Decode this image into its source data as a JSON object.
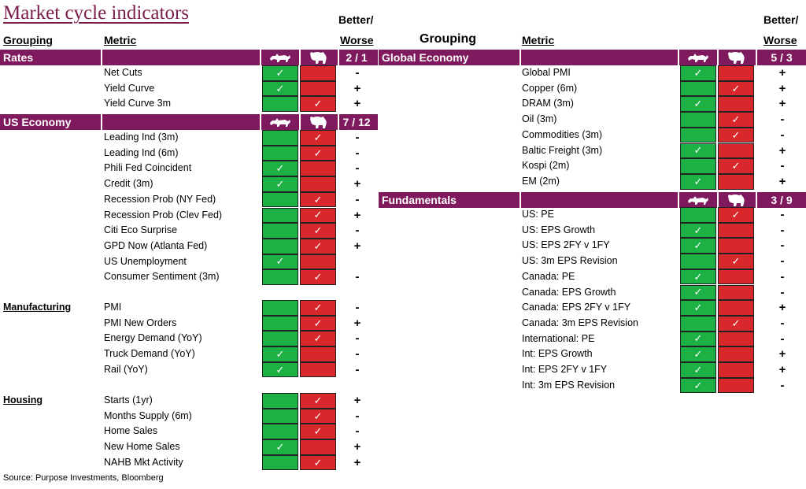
{
  "title": "Market cycle indicators",
  "headers": {
    "grouping": "Grouping",
    "metric": "Metric",
    "better": "Better/",
    "worse": "Worse"
  },
  "icons": {
    "bull": "bull-icon",
    "bear": "bear-icon"
  },
  "colors": {
    "bar": "#7f1a5e",
    "green": "#1db045",
    "red": "#d8282c",
    "title": "#7b1e4b"
  },
  "check": "✓",
  "chart_data": {
    "type": "table",
    "title": "Market cycle indicators",
    "columns": [
      "Grouping",
      "Metric",
      "Bull",
      "Bear",
      "Better/Worse"
    ],
    "sections": [
      {
        "name": "Rates",
        "score": "2 / 1",
        "rows": [
          {
            "metric": "Net Cuts",
            "signal": "bull",
            "trend": "-"
          },
          {
            "metric": "Yield Curve",
            "signal": "bull",
            "trend": "+"
          },
          {
            "metric": "Yield Curve 3m",
            "signal": "bear",
            "trend": "+"
          }
        ]
      },
      {
        "name": "US Economy",
        "score": "7 / 12",
        "rows": [
          {
            "metric": "Leading Ind (3m)",
            "signal": "bear",
            "trend": "-"
          },
          {
            "metric": "Leading Ind (6m)",
            "signal": "bear",
            "trend": "-"
          },
          {
            "metric": "Phili Fed Coincident",
            "signal": "bull",
            "trend": "-"
          },
          {
            "metric": "Credit (3m)",
            "signal": "bull",
            "trend": "+"
          },
          {
            "metric": "Recession Prob (NY Fed)",
            "signal": "bear",
            "trend": "-"
          },
          {
            "metric": "Recession Prob (Clev Fed)",
            "signal": "bear",
            "trend": "+"
          },
          {
            "metric": "Citi Eco Surprise",
            "signal": "bear",
            "trend": "-"
          },
          {
            "metric": "GPD Now (Atlanta Fed)",
            "signal": "bear",
            "trend": "+"
          },
          {
            "metric": "US Unemployment",
            "signal": "bull",
            "trend": ""
          },
          {
            "metric": "Consumer Sentiment (3m)",
            "signal": "bear",
            "trend": "-"
          }
        ]
      },
      {
        "name": "Manufacturing",
        "subgroup": true,
        "rows": [
          {
            "metric": "PMI",
            "signal": "bear",
            "trend": "-"
          },
          {
            "metric": "PMI New Orders",
            "signal": "bear",
            "trend": "+"
          },
          {
            "metric": "Energy Demand (YoY)",
            "signal": "bear",
            "trend": "-"
          },
          {
            "metric": "Truck Demand (YoY)",
            "signal": "bull",
            "trend": "-"
          },
          {
            "metric": "Rail (YoY)",
            "signal": "bull",
            "trend": "-"
          }
        ]
      },
      {
        "name": "Housing",
        "subgroup": true,
        "rows": [
          {
            "metric": "Starts (1yr)",
            "signal": "bear",
            "trend": "+"
          },
          {
            "metric": "Months Supply (6m)",
            "signal": "bear",
            "trend": "-"
          },
          {
            "metric": "Home Sales",
            "signal": "bear",
            "trend": "-"
          },
          {
            "metric": "New Home Sales",
            "signal": "bull",
            "trend": "+"
          },
          {
            "metric": "NAHB Mkt Activity",
            "signal": "bear",
            "trend": "+"
          }
        ]
      },
      {
        "name": "Global Economy",
        "score": "5 / 3",
        "rows": [
          {
            "metric": "Global PMI",
            "signal": "bull",
            "trend": "+"
          },
          {
            "metric": "Copper (6m)",
            "signal": "bear",
            "trend": "+"
          },
          {
            "metric": "DRAM (3m)",
            "signal": "bull",
            "trend": "+"
          },
          {
            "metric": "Oil (3m)",
            "signal": "bear",
            "trend": "-"
          },
          {
            "metric": "Commodities (3m)",
            "signal": "bear",
            "trend": "-"
          },
          {
            "metric": "Baltic Freight (3m)",
            "signal": "bull",
            "trend": "+"
          },
          {
            "metric": "Kospi (2m)",
            "signal": "bear",
            "trend": "-"
          },
          {
            "metric": "EM (2m)",
            "signal": "bull",
            "trend": "+"
          }
        ]
      },
      {
        "name": "Fundamentals",
        "score": "3 / 9",
        "rows": [
          {
            "metric": "US: PE",
            "signal": "bear",
            "trend": "-"
          },
          {
            "metric": "US: EPS Growth",
            "signal": "bull",
            "trend": "-"
          },
          {
            "metric": "US: EPS 2FY v 1FY",
            "signal": "bull",
            "trend": "-"
          },
          {
            "metric": "US: 3m EPS Revision",
            "signal": "bear",
            "trend": "-"
          },
          {
            "metric": "Canada: PE",
            "signal": "bull",
            "trend": "-"
          },
          {
            "metric": "Canada: EPS Growth",
            "signal": "bull",
            "trend": "-"
          },
          {
            "metric": "Canada: EPS 2FY v 1FY",
            "signal": "bull",
            "trend": "+"
          },
          {
            "metric": "Canada: 3m EPS Revision",
            "signal": "bear",
            "trend": "-"
          },
          {
            "metric": "International: PE",
            "signal": "bull",
            "trend": "-"
          },
          {
            "metric": "Int: EPS Growth",
            "signal": "bull",
            "trend": "+"
          },
          {
            "metric": "Int: EPS 2FY v 1FY",
            "signal": "bull",
            "trend": "+"
          },
          {
            "metric": "Int: 3m EPS Revision",
            "signal": "bull",
            "trend": "-"
          }
        ]
      }
    ]
  },
  "source": "Source: Purpose Investments, Bloomberg"
}
